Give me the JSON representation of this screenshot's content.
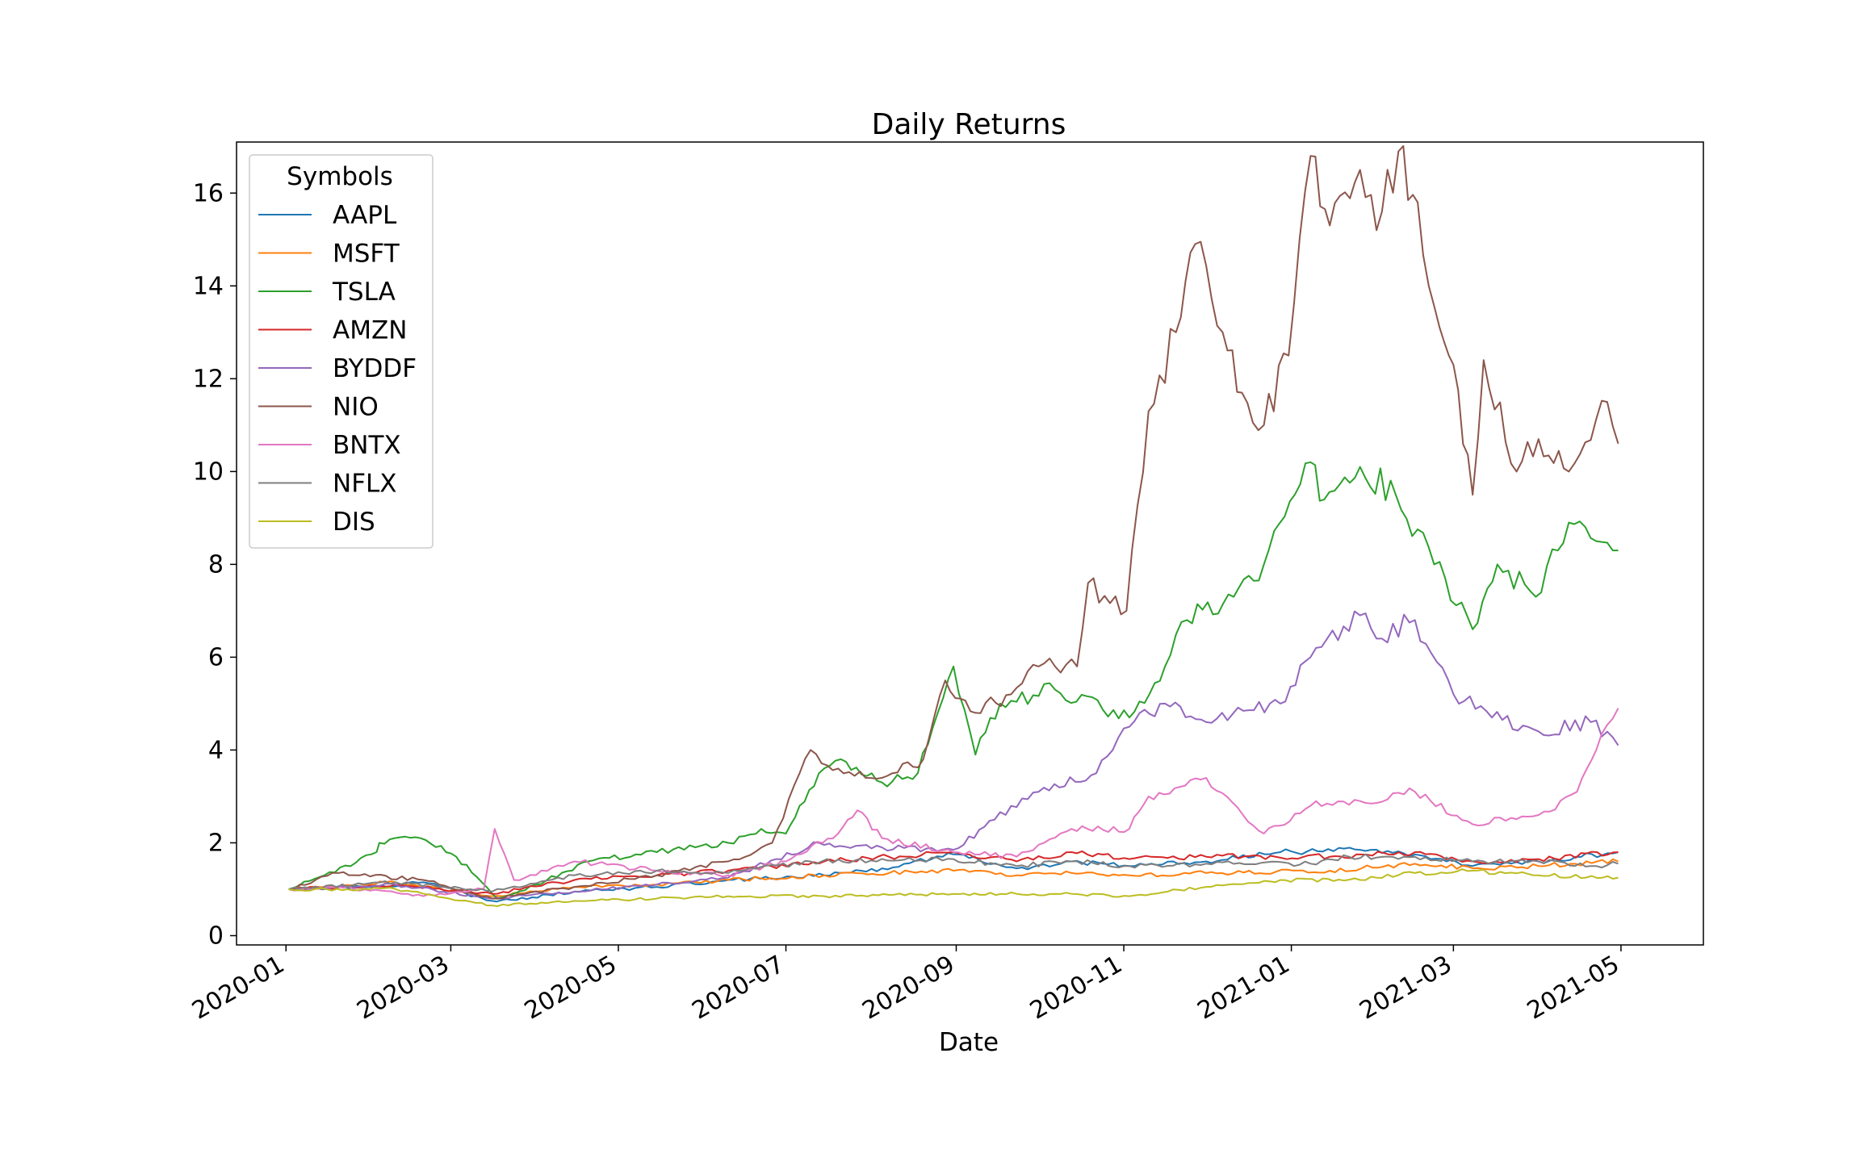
{
  "chart_data": {
    "type": "line",
    "title": "Daily Returns",
    "xlabel": "Date",
    "ylabel": "",
    "legend_title": "Symbols",
    "legend_position": "upper-left",
    "grid": false,
    "xlim": [
      "2019-12-14",
      "2021-05-31"
    ],
    "ylim": [
      -0.2,
      17.1
    ],
    "x_ticks": [
      "2020-01",
      "2020-03",
      "2020-05",
      "2020-07",
      "2020-09",
      "2020-11",
      "2021-01",
      "2021-03",
      "2021-05"
    ],
    "y_ticks": [
      0,
      2,
      4,
      6,
      8,
      10,
      12,
      14,
      16
    ],
    "series": [
      {
        "name": "AAPL",
        "color": "#1f77b4",
        "points": [
          [
            "2020-01-02",
            1.0
          ],
          [
            "2020-02-01",
            1.05
          ],
          [
            "2020-02-20",
            1.15
          ],
          [
            "2020-03-16",
            0.75
          ],
          [
            "2020-03-23",
            0.77
          ],
          [
            "2020-04-15",
            0.95
          ],
          [
            "2020-05-15",
            1.05
          ],
          [
            "2020-06-10",
            1.2
          ],
          [
            "2020-07-15",
            1.3
          ],
          [
            "2020-08-05",
            1.45
          ],
          [
            "2020-08-31",
            1.75
          ],
          [
            "2020-09-23",
            1.45
          ],
          [
            "2020-10-13",
            1.6
          ],
          [
            "2020-11-03",
            1.5
          ],
          [
            "2020-12-01",
            1.6
          ],
          [
            "2020-12-28",
            1.8
          ],
          [
            "2021-01-26",
            1.85
          ],
          [
            "2021-02-15",
            1.75
          ],
          [
            "2021-03-08",
            1.5
          ],
          [
            "2021-04-01",
            1.6
          ],
          [
            "2021-04-30",
            1.8
          ]
        ]
      },
      {
        "name": "MSFT",
        "color": "#ff7f0e",
        "points": [
          [
            "2020-01-02",
            1.0
          ],
          [
            "2020-02-10",
            1.15
          ],
          [
            "2020-03-16",
            0.85
          ],
          [
            "2020-04-15",
            1.05
          ],
          [
            "2020-05-15",
            1.1
          ],
          [
            "2020-06-10",
            1.2
          ],
          [
            "2020-07-15",
            1.3
          ],
          [
            "2020-08-31",
            1.4
          ],
          [
            "2020-09-23",
            1.3
          ],
          [
            "2020-10-13",
            1.35
          ],
          [
            "2020-11-03",
            1.3
          ],
          [
            "2020-12-01",
            1.35
          ],
          [
            "2021-01-15",
            1.4
          ],
          [
            "2021-02-15",
            1.55
          ],
          [
            "2021-03-08",
            1.45
          ],
          [
            "2021-04-01",
            1.5
          ],
          [
            "2021-04-30",
            1.6
          ]
        ]
      },
      {
        "name": "TSLA",
        "color": "#2ca02c",
        "points": [
          [
            "2020-01-02",
            1.0
          ],
          [
            "2020-01-15",
            1.3
          ],
          [
            "2020-02-03",
            1.8
          ],
          [
            "2020-02-04",
            2.0
          ],
          [
            "2020-02-19",
            2.1
          ],
          [
            "2020-03-03",
            1.7
          ],
          [
            "2020-03-18",
            0.8
          ],
          [
            "2020-04-01",
            1.1
          ],
          [
            "2020-04-20",
            1.6
          ],
          [
            "2020-05-15",
            1.8
          ],
          [
            "2020-06-10",
            2.0
          ],
          [
            "2020-06-22",
            2.3
          ],
          [
            "2020-07-01",
            2.2
          ],
          [
            "2020-07-06",
            2.8
          ],
          [
            "2020-07-13",
            3.5
          ],
          [
            "2020-07-21",
            3.8
          ],
          [
            "2020-08-05",
            3.3
          ],
          [
            "2020-08-18",
            3.5
          ],
          [
            "2020-08-31",
            5.8
          ],
          [
            "2020-09-08",
            3.9
          ],
          [
            "2020-09-17",
            5.0
          ],
          [
            "2020-10-07",
            5.3
          ],
          [
            "2020-11-03",
            4.7
          ],
          [
            "2020-11-16",
            5.8
          ],
          [
            "2020-11-24",
            6.8
          ],
          [
            "2020-12-11",
            7.3
          ],
          [
            "2020-12-22",
            8.0
          ],
          [
            "2021-01-08",
            10.2
          ],
          [
            "2021-01-13",
            9.4
          ],
          [
            "2021-01-26",
            10.1
          ],
          [
            "2021-02-08",
            9.5
          ],
          [
            "2021-02-22",
            8.0
          ],
          [
            "2021-03-08",
            6.6
          ],
          [
            "2021-03-17",
            8.0
          ],
          [
            "2021-03-31",
            7.3
          ],
          [
            "2021-04-12",
            8.9
          ],
          [
            "2021-04-22",
            8.5
          ],
          [
            "2021-04-30",
            8.3
          ]
        ]
      },
      {
        "name": "AMZN",
        "color": "#d62728",
        "points": [
          [
            "2020-01-02",
            1.0
          ],
          [
            "2020-02-10",
            1.1
          ],
          [
            "2020-03-16",
            0.9
          ],
          [
            "2020-04-15",
            1.2
          ],
          [
            "2020-05-15",
            1.3
          ],
          [
            "2020-06-10",
            1.4
          ],
          [
            "2020-07-15",
            1.6
          ],
          [
            "2020-08-31",
            1.8
          ],
          [
            "2020-09-23",
            1.6
          ],
          [
            "2020-10-13",
            1.8
          ],
          [
            "2020-11-03",
            1.65
          ],
          [
            "2020-12-01",
            1.7
          ],
          [
            "2021-01-15",
            1.7
          ],
          [
            "2021-02-15",
            1.8
          ],
          [
            "2021-03-08",
            1.6
          ],
          [
            "2021-04-01",
            1.65
          ],
          [
            "2021-04-30",
            1.8
          ]
        ]
      },
      {
        "name": "BYDDF",
        "color": "#9467bd",
        "points": [
          [
            "2020-01-02",
            1.0
          ],
          [
            "2020-02-10",
            1.1
          ],
          [
            "2020-03-16",
            0.8
          ],
          [
            "2020-04-15",
            0.95
          ],
          [
            "2020-05-15",
            1.1
          ],
          [
            "2020-06-10",
            1.25
          ],
          [
            "2020-07-13",
            2.0
          ],
          [
            "2020-08-05",
            1.9
          ],
          [
            "2020-08-31",
            1.85
          ],
          [
            "2020-09-15",
            2.5
          ],
          [
            "2020-10-01",
            3.1
          ],
          [
            "2020-10-22",
            3.5
          ],
          [
            "2020-11-03",
            4.5
          ],
          [
            "2020-11-16",
            5.0
          ],
          [
            "2020-12-01",
            4.6
          ],
          [
            "2020-12-28",
            5.0
          ],
          [
            "2021-01-08",
            6.0
          ],
          [
            "2021-01-26",
            6.9
          ],
          [
            "2021-02-01",
            6.4
          ],
          [
            "2021-02-15",
            6.8
          ],
          [
            "2021-03-01",
            5.2
          ],
          [
            "2021-03-15",
            4.7
          ],
          [
            "2021-04-01",
            4.4
          ],
          [
            "2021-04-20",
            4.6
          ],
          [
            "2021-04-30",
            4.1
          ]
        ]
      },
      {
        "name": "NIO",
        "color": "#8c564b",
        "points": [
          [
            "2020-01-02",
            1.0
          ],
          [
            "2020-01-20",
            1.35
          ],
          [
            "2020-02-20",
            1.2
          ],
          [
            "2020-03-16",
            0.8
          ],
          [
            "2020-04-15",
            1.05
          ],
          [
            "2020-05-15",
            1.3
          ],
          [
            "2020-06-10",
            1.6
          ],
          [
            "2020-06-26",
            2.0
          ],
          [
            "2020-07-06",
            3.5
          ],
          [
            "2020-07-10",
            4.0
          ],
          [
            "2020-07-20",
            3.6
          ],
          [
            "2020-08-05",
            3.4
          ],
          [
            "2020-08-20",
            3.8
          ],
          [
            "2020-08-28",
            5.5
          ],
          [
            "2020-09-08",
            4.8
          ],
          [
            "2020-09-21",
            5.2
          ],
          [
            "2020-10-01",
            5.8
          ],
          [
            "2020-10-15",
            5.8
          ],
          [
            "2020-10-19",
            7.6
          ],
          [
            "2020-11-02",
            7.0
          ],
          [
            "2020-11-10",
            11.3
          ],
          [
            "2020-11-20",
            13.0
          ],
          [
            "2020-11-27",
            14.9
          ],
          [
            "2020-12-07",
            13.0
          ],
          [
            "2020-12-14",
            11.7
          ],
          [
            "2020-12-22",
            11.0
          ],
          [
            "2020-12-31",
            12.5
          ],
          [
            "2021-01-08",
            16.8
          ],
          [
            "2021-01-15",
            15.3
          ],
          [
            "2021-01-26",
            16.5
          ],
          [
            "2021-02-01",
            15.2
          ],
          [
            "2021-02-09",
            16.9
          ],
          [
            "2021-02-16",
            15.8
          ],
          [
            "2021-02-24",
            13.1
          ],
          [
            "2021-03-01",
            12.3
          ],
          [
            "2021-03-08",
            9.5
          ],
          [
            "2021-03-12",
            12.4
          ],
          [
            "2021-03-24",
            10.0
          ],
          [
            "2021-04-01",
            10.7
          ],
          [
            "2021-04-12",
            10.0
          ],
          [
            "2021-04-26",
            11.5
          ],
          [
            "2021-04-30",
            10.6
          ]
        ]
      },
      {
        "name": "BNTX",
        "color": "#e377c2",
        "points": [
          [
            "2020-01-02",
            1.0
          ],
          [
            "2020-01-20",
            1.05
          ],
          [
            "2020-02-20",
            0.85
          ],
          [
            "2020-03-13",
            1.0
          ],
          [
            "2020-03-17",
            2.3
          ],
          [
            "2020-03-24",
            1.2
          ],
          [
            "2020-04-15",
            1.6
          ],
          [
            "2020-05-15",
            1.4
          ],
          [
            "2020-06-10",
            1.3
          ],
          [
            "2020-07-01",
            1.6
          ],
          [
            "2020-07-20",
            2.2
          ],
          [
            "2020-07-27",
            2.7
          ],
          [
            "2020-08-05",
            2.1
          ],
          [
            "2020-08-31",
            1.8
          ],
          [
            "2020-09-23",
            1.7
          ],
          [
            "2020-10-13",
            2.3
          ],
          [
            "2020-11-03",
            2.3
          ],
          [
            "2020-11-10",
            3.0
          ],
          [
            "2020-12-01",
            3.4
          ],
          [
            "2020-12-22",
            2.2
          ],
          [
            "2021-01-08",
            2.8
          ],
          [
            "2021-01-26",
            2.9
          ],
          [
            "2021-02-15",
            3.1
          ],
          [
            "2021-03-08",
            2.4
          ],
          [
            "2021-04-01",
            2.6
          ],
          [
            "2021-04-15",
            3.1
          ],
          [
            "2021-04-22",
            4.0
          ],
          [
            "2021-04-30",
            4.9
          ]
        ]
      },
      {
        "name": "NFLX",
        "color": "#7f7f7f",
        "points": [
          [
            "2020-01-02",
            1.0
          ],
          [
            "2020-02-10",
            1.15
          ],
          [
            "2020-03-16",
            0.95
          ],
          [
            "2020-04-15",
            1.3
          ],
          [
            "2020-05-15",
            1.4
          ],
          [
            "2020-06-10",
            1.35
          ],
          [
            "2020-07-10",
            1.6
          ],
          [
            "2020-08-31",
            1.65
          ],
          [
            "2020-09-23",
            1.5
          ],
          [
            "2020-10-13",
            1.6
          ],
          [
            "2020-11-03",
            1.5
          ],
          [
            "2020-12-01",
            1.55
          ],
          [
            "2021-01-08",
            1.55
          ],
          [
            "2021-01-22",
            1.7
          ],
          [
            "2021-02-15",
            1.7
          ],
          [
            "2021-03-08",
            1.6
          ],
          [
            "2021-04-01",
            1.6
          ],
          [
            "2021-04-20",
            1.5
          ],
          [
            "2021-04-30",
            1.55
          ]
        ]
      },
      {
        "name": "DIS",
        "color": "#bcbd22",
        "points": [
          [
            "2020-01-02",
            1.0
          ],
          [
            "2020-02-10",
            1.0
          ],
          [
            "2020-03-16",
            0.65
          ],
          [
            "2020-04-15",
            0.75
          ],
          [
            "2020-05-15",
            0.8
          ],
          [
            "2020-06-10",
            0.85
          ],
          [
            "2020-07-15",
            0.85
          ],
          [
            "2020-08-31",
            0.9
          ],
          [
            "2020-09-23",
            0.9
          ],
          [
            "2020-10-13",
            0.9
          ],
          [
            "2020-11-03",
            0.85
          ],
          [
            "2020-12-01",
            1.05
          ],
          [
            "2020-12-28",
            1.2
          ],
          [
            "2021-01-26",
            1.2
          ],
          [
            "2021-02-15",
            1.35
          ],
          [
            "2021-03-08",
            1.4
          ],
          [
            "2021-04-01",
            1.3
          ],
          [
            "2021-04-30",
            1.25
          ]
        ]
      }
    ]
  }
}
